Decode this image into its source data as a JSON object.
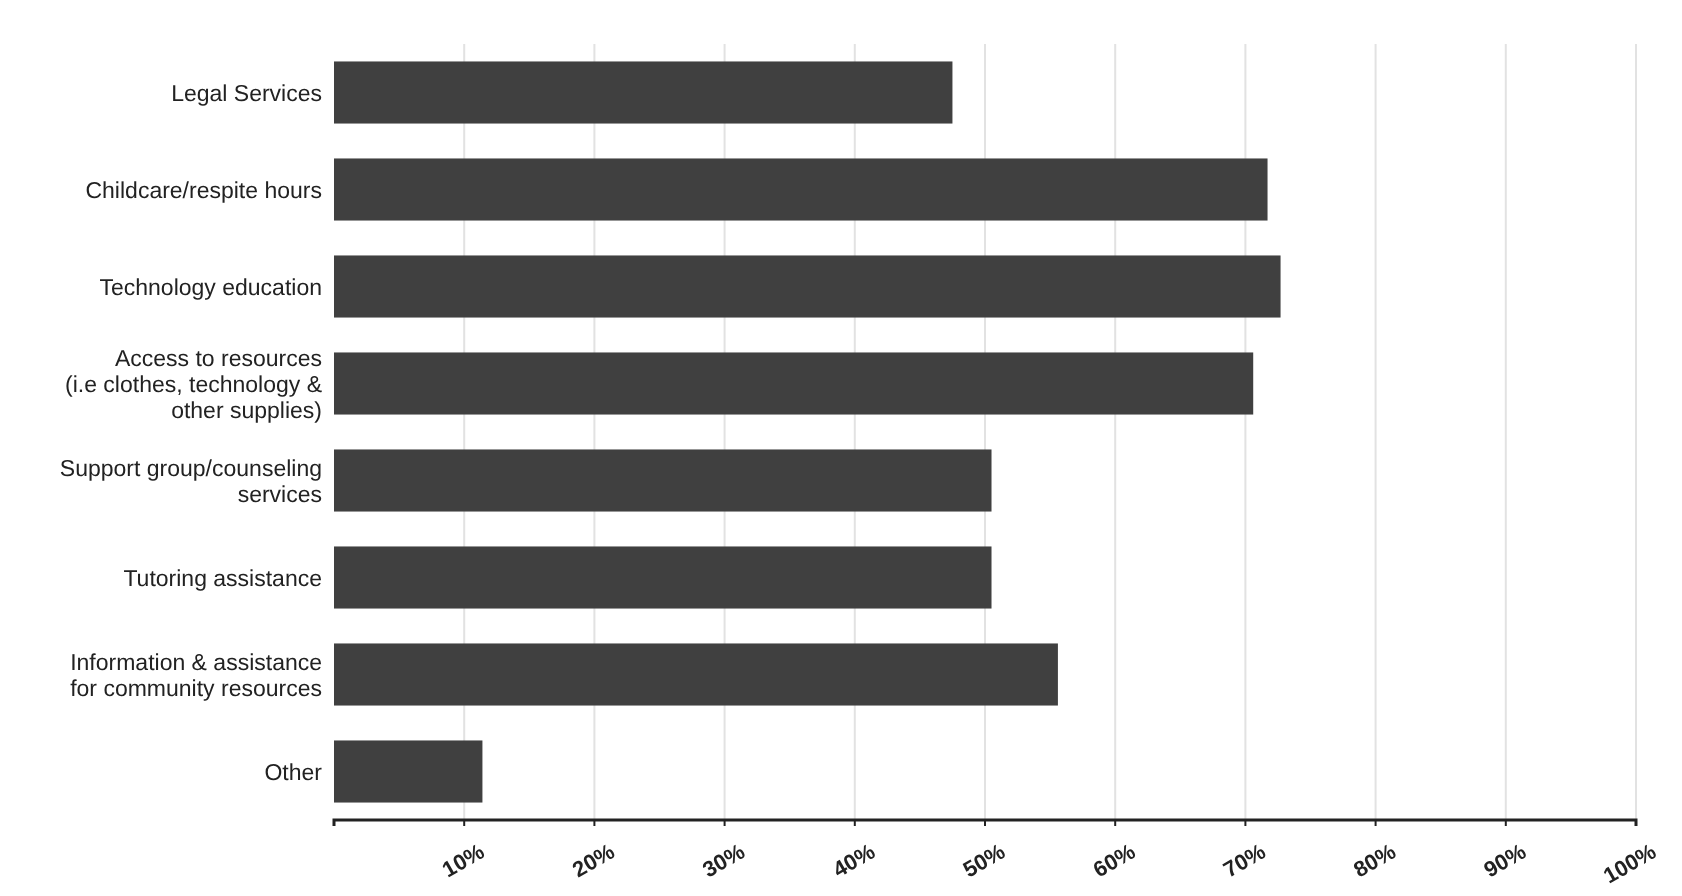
{
  "chart_data": {
    "type": "bar",
    "orientation": "horizontal",
    "categories": [
      "Legal Services",
      "Childcare/respite hours",
      "Technology education",
      "Access to resources\n(i.e  clothes, technology &\nother supplies)",
      "Support group/counseling\nservices",
      "Tutoring assistance",
      "Information & assistance\nfor community resources",
      "Other"
    ],
    "values": [
      47.5,
      71.7,
      72.7,
      70.6,
      50.5,
      50.5,
      55.6,
      11.4
    ],
    "color": "#404040",
    "xlim": [
      0,
      100
    ],
    "xticks": [
      {
        "value": 10,
        "label": "10%"
      },
      {
        "value": 20,
        "label": "20%"
      },
      {
        "value": 30,
        "label": "30%"
      },
      {
        "value": 40,
        "label": "40%"
      },
      {
        "value": 50,
        "label": "50%"
      },
      {
        "value": 60,
        "label": "60%"
      },
      {
        "value": 70,
        "label": "70%"
      },
      {
        "value": 80,
        "label": "80%"
      },
      {
        "value": 90,
        "label": "90%"
      },
      {
        "value": 100,
        "label": "100%"
      }
    ],
    "grid": "x"
  }
}
